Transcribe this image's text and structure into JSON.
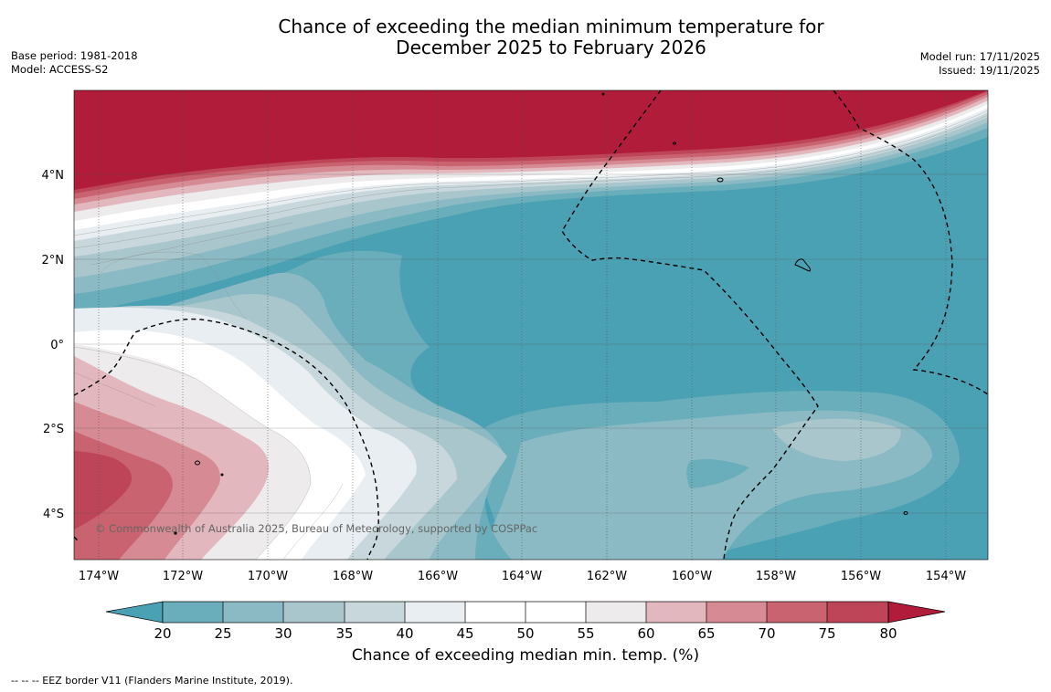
{
  "header": {
    "title_line1": "Chance of exceeding the median minimum temperature for",
    "title_line2": "December 2025 to February 2026",
    "base_period": "Base period: 1981-2018",
    "model": "Model: ACCESS-S2",
    "model_run": "Model run: 17/11/2025",
    "issued": "Issued: 19/11/2025"
  },
  "map": {
    "lat_labels": [
      "4°N",
      "2°N",
      "0°",
      "2°S",
      "4°S"
    ],
    "lon_labels": [
      "174°W",
      "172°W",
      "170°W",
      "168°W",
      "166°W",
      "164°W",
      "162°W",
      "160°W",
      "158°W",
      "156°W",
      "154°W"
    ],
    "copyright": "© Commonwealth of Australia 2025, Bureau of Meteorology, supported by COSPPac"
  },
  "colorbar": {
    "ticks": [
      "20",
      "25",
      "30",
      "35",
      "40",
      "45",
      "50",
      "55",
      "60",
      "65",
      "70",
      "75",
      "80"
    ],
    "label": "Chance of exceeding median min. temp. (%)",
    "colors": [
      "#4aa1b3",
      "#6aadbb",
      "#8bbac5",
      "#a9c6cc",
      "#c7d7db",
      "#e8eef1",
      "#ffffff",
      "#ffffff",
      "#edebec",
      "#e2b7bd",
      "#d68a93",
      "#c9636f",
      "#be4457",
      "#b01c3a"
    ]
  },
  "footnote": "--  --  -- EEZ border V11 (Flanders Marine Institute, 2019)."
}
